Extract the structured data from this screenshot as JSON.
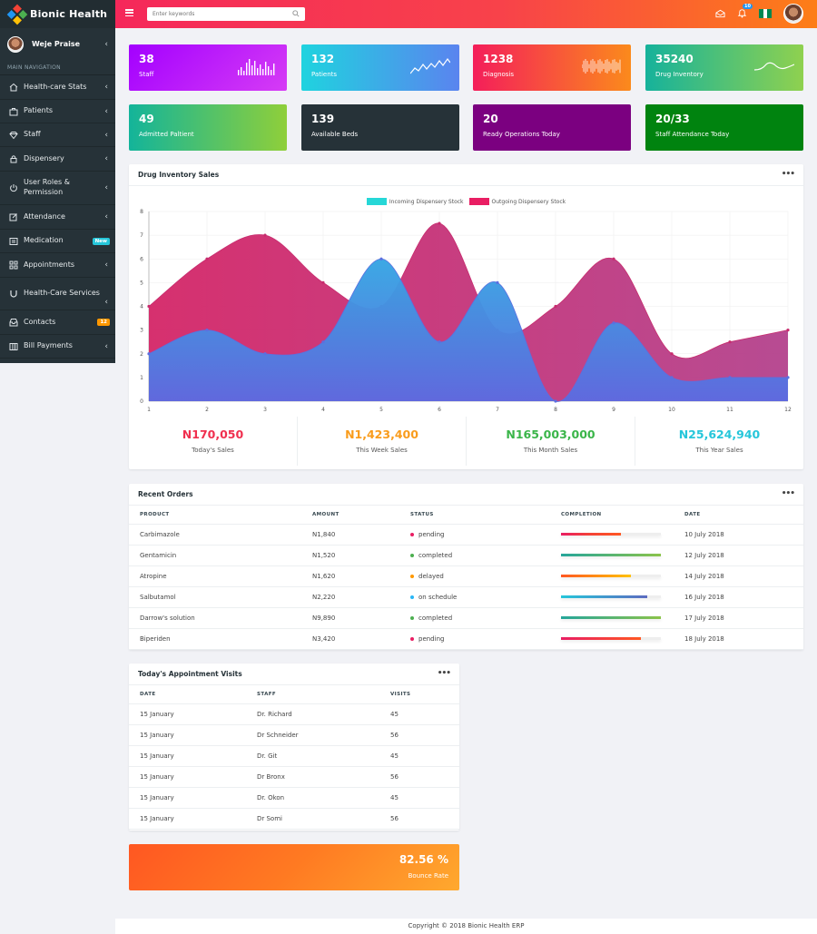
{
  "app": {
    "name": "Bionic Health"
  },
  "sidebar": {
    "user": "Weje Praise",
    "nav_heading": "MAIN NAVIGATION",
    "items": [
      {
        "label": "Health-care Stats",
        "icon": "home-icon",
        "chevron": "‹"
      },
      {
        "label": "Patients",
        "icon": "briefcase-icon",
        "chevron": "‹"
      },
      {
        "label": "Staff",
        "icon": "diamond-icon",
        "chevron": "‹"
      },
      {
        "label": "Dispensery",
        "icon": "lock-icon",
        "chevron": "‹"
      },
      {
        "label": "User Roles & Permission",
        "icon": "power-icon",
        "chevron": "‹"
      },
      {
        "label": "Attendance",
        "icon": "edit-icon",
        "chevron": "‹"
      },
      {
        "label": "Medication",
        "icon": "list-icon",
        "badge": "New"
      },
      {
        "label": "Appointments",
        "icon": "grid-icon",
        "chevron": "‹"
      },
      {
        "label": "Health-Care Services",
        "icon": "magnet-icon",
        "chevron": "‹"
      },
      {
        "label": "Contacts",
        "icon": "inbox-icon",
        "badge": "12"
      },
      {
        "label": "Bill Payments",
        "icon": "columns-icon",
        "chevron": "‹"
      }
    ]
  },
  "topbar": {
    "search_placeholder": "Enter keywords",
    "notification_count": "10"
  },
  "stats": [
    {
      "value": "38",
      "label": "Staff"
    },
    {
      "value": "132",
      "label": "Patients"
    },
    {
      "value": "1238",
      "label": "Diagnosis"
    },
    {
      "value": "35240",
      "label": "Drug Inventory"
    },
    {
      "value": "49",
      "label": "Admitted Paltient"
    },
    {
      "value": "139",
      "label": "Available Beds"
    },
    {
      "value": "20",
      "label": "Ready Operations Today"
    },
    {
      "value": "20/33",
      "label": "Staff Attendance Today"
    }
  ],
  "chart_panel": {
    "title": "Drug Inventory Sales",
    "menu": "•••"
  },
  "chart_data": {
    "type": "area",
    "x": [
      1,
      2,
      3,
      4,
      5,
      6,
      7,
      8,
      9,
      10,
      11,
      12
    ],
    "ylim": [
      0,
      8
    ],
    "yticks": [
      0,
      1,
      2,
      3,
      4,
      5,
      6,
      7,
      8
    ],
    "legend_position": "top-center",
    "grid": true,
    "series": [
      {
        "name": "Incoming Dispensery Stock",
        "values": [
          2,
          3,
          2,
          2.5,
          6,
          2.5,
          5,
          0,
          3.3,
          1,
          1,
          1
        ],
        "color": "#5b6fe0",
        "legend_color": "#26d7d7"
      },
      {
        "name": "Outgoing Dispensery Stock",
        "values": [
          4,
          6,
          7,
          5,
          4,
          7.5,
          3,
          4,
          6,
          2,
          2.5,
          3
        ],
        "color": "#c72c6e",
        "legend_color": "#e91e63"
      }
    ]
  },
  "sales_summary": [
    {
      "value": "N170,050",
      "label": "Today's Sales",
      "color": "#f0304f"
    },
    {
      "value": "N1,423,400",
      "label": "This Week Sales",
      "color": "#f99c1c"
    },
    {
      "value": "N165,003,000",
      "label": "This Month Sales",
      "color": "#3ab549"
    },
    {
      "value": "N25,624,940",
      "label": "This Year Sales",
      "color": "#26c6da"
    }
  ],
  "orders": {
    "title": "Recent Orders",
    "menu": "•••",
    "columns": [
      "PRODUCT",
      "AMOUNT",
      "STATUS",
      "COMPLETION",
      "DATE"
    ],
    "rows": [
      {
        "product": "Carbimazole",
        "amount": "N1,840",
        "status": "pending",
        "status_color": "#e91e63",
        "completion": 0.6,
        "bar": "linear-gradient(90deg,#e91e63,#f44336,#ff5722)",
        "date": "10 July 2018"
      },
      {
        "product": "Gentamicin",
        "amount": "N1,520",
        "status": "completed",
        "status_color": "#4caf50",
        "completion": 1.0,
        "bar": "linear-gradient(90deg,#26a69a,#8bc34a)",
        "date": "12 July 2018"
      },
      {
        "product": "Atropine",
        "amount": "N1,620",
        "status": "delayed",
        "status_color": "#ff9800",
        "completion": 0.7,
        "bar": "linear-gradient(90deg,#ff5722,#ffc107)",
        "date": "14 July 2018"
      },
      {
        "product": "Salbutamol",
        "amount": "N2,220",
        "status": "on schedule",
        "status_color": "#29b6f6",
        "completion": 0.86,
        "bar": "linear-gradient(90deg,#26c6da,#5c6bc0)",
        "date": "16 July 2018"
      },
      {
        "product": "Darrow's solution",
        "amount": "N9,890",
        "status": "completed",
        "status_color": "#4caf50",
        "completion": 1.0,
        "bar": "linear-gradient(90deg,#26a69a,#8bc34a)",
        "date": "17 July 2018"
      },
      {
        "product": "Biperiden",
        "amount": "N3,420",
        "status": "pending",
        "status_color": "#e91e63",
        "completion": 0.8,
        "bar": "linear-gradient(90deg,#e91e63,#ff5722)",
        "date": "18 July 2018"
      }
    ]
  },
  "visits": {
    "title": "Today's Appointment Visits",
    "menu": "•••",
    "columns": [
      "DATE",
      "STAFF",
      "VISITS"
    ],
    "rows": [
      {
        "date": "15 January",
        "staff": "Dr. Richard",
        "visits": "45"
      },
      {
        "date": "15 January",
        "staff": "Dr Schneider",
        "visits": "56"
      },
      {
        "date": "15 January",
        "staff": "Dr. Git",
        "visits": "45"
      },
      {
        "date": "15 January",
        "staff": "Dr Bronx",
        "visits": "56"
      },
      {
        "date": "15 January",
        "staff": "Dr. Okon",
        "visits": "45"
      },
      {
        "date": "15 January",
        "staff": "Dr Somi",
        "visits": "56"
      }
    ]
  },
  "bounce": {
    "value": "82.56 %",
    "label": "Bounce Rate"
  },
  "footer": {
    "text": "Copyright © 2018 Bionic Health ERP"
  }
}
